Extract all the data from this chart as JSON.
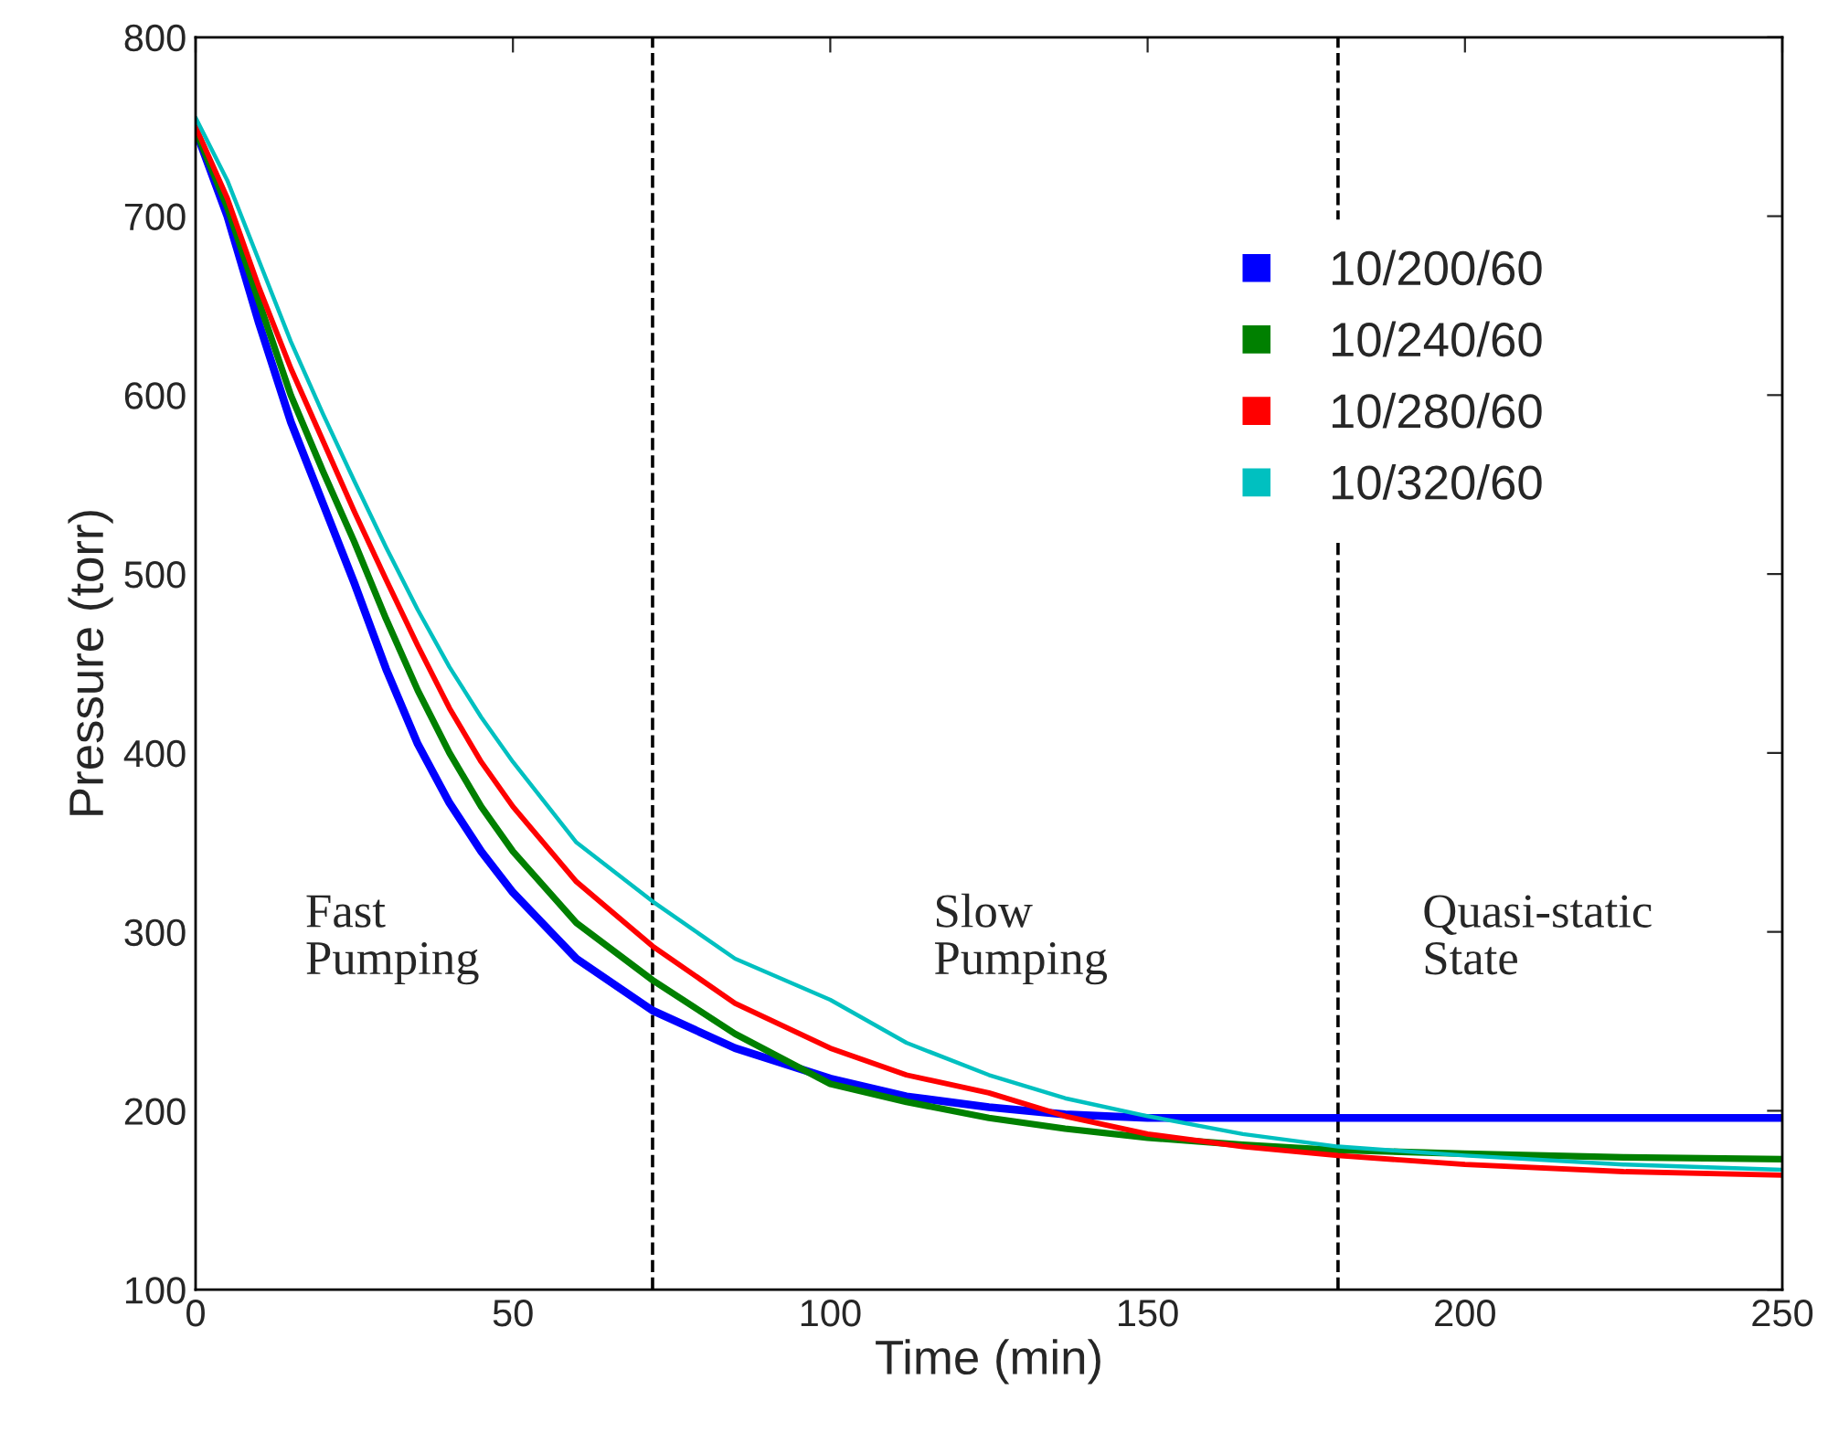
{
  "chart_data": {
    "type": "line",
    "xlabel": "Time (min)",
    "ylabel": "Pressure (torr)",
    "xlim": [
      0,
      250
    ],
    "xticks": [
      0,
      50,
      100,
      150,
      200,
      250
    ],
    "ylim": [
      100,
      800
    ],
    "yticks": [
      100,
      200,
      300,
      400,
      500,
      600,
      700,
      800
    ],
    "grid": false,
    "legend": "top right",
    "marker": "none",
    "line_style": "solid",
    "x": [
      0,
      5,
      10,
      15,
      20,
      25,
      30,
      35,
      40,
      45,
      50,
      60,
      72,
      85,
      100,
      112,
      125,
      137,
      150,
      165,
      180,
      200,
      225,
      250
    ],
    "series": [
      {
        "name": "10/200/60",
        "color": "#0000ff",
        "values": [
          748,
          700,
          640,
          585,
          540,
          495,
          447,
          405,
          372,
          345,
          322,
          285,
          256,
          235,
          218,
          208,
          202,
          198,
          196,
          196,
          196,
          196,
          196,
          196
        ]
      },
      {
        "name": "10/240/60",
        "color": "#008000",
        "values": [
          748,
          705,
          652,
          600,
          558,
          518,
          475,
          435,
          400,
          370,
          345,
          305,
          273,
          243,
          215,
          205,
          196,
          190,
          185,
          181,
          178,
          176,
          174,
          173
        ]
      },
      {
        "name": "10/280/60",
        "color": "#ff0000",
        "values": [
          750,
          710,
          660,
          615,
          575,
          535,
          497,
          460,
          425,
          395,
          370,
          328,
          292,
          260,
          235,
          220,
          210,
          197,
          187,
          180,
          175,
          170,
          166,
          164
        ]
      },
      {
        "name": "10/320/60",
        "color": "#00c0c0",
        "values": [
          755,
          720,
          675,
          630,
          590,
          552,
          515,
          480,
          448,
          420,
          395,
          350,
          317,
          285,
          262,
          238,
          220,
          207,
          197,
          187,
          180,
          175,
          170,
          167
        ]
      }
    ],
    "ref_lines": [
      {
        "axis": "x",
        "value": 72,
        "color": "#000000",
        "line_style": "dashed"
      },
      {
        "axis": "x",
        "value": 180,
        "color": "#000000",
        "line_style": "dashed"
      }
    ],
    "annotations": [
      "Fast\nPumping",
      "Slow\nPumping",
      "Quasi-static\nState"
    ]
  }
}
